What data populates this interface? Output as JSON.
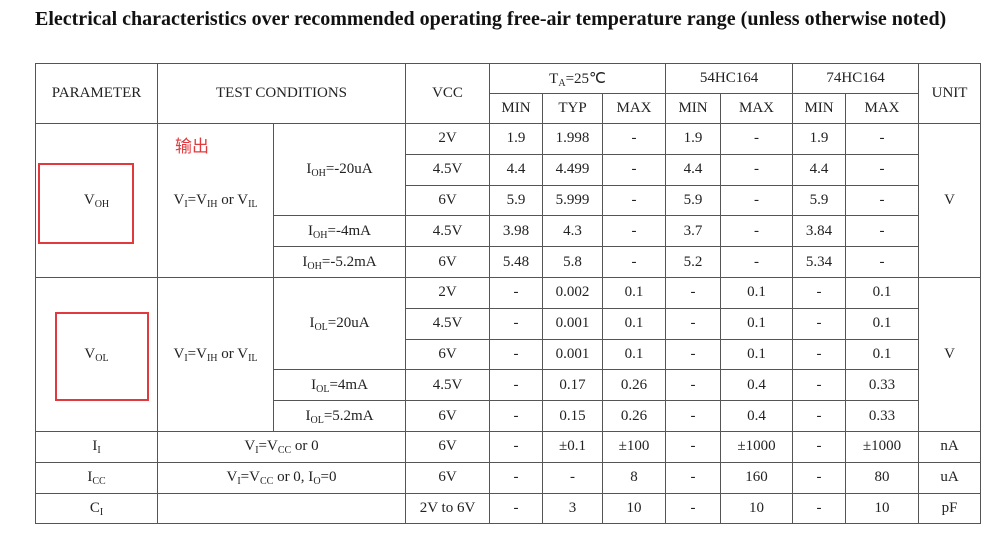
{
  "title": "Electrical characteristics over recommended operating free-air temperature range (unless otherwise noted)",
  "annotation": "输出",
  "header": {
    "parameter": "PARAMETER",
    "test_conditions": "TEST CONDITIONS",
    "vcc": "VCC",
    "ta": [
      "T",
      "A",
      "=25℃"
    ],
    "group_54": "54HC164",
    "group_74": "74HC164",
    "unit": "UNIT",
    "columns": [
      "MIN",
      "TYP",
      "MAX",
      "MIN",
      "MAX",
      "MIN",
      "MAX"
    ]
  },
  "sections": [
    {
      "parameter": [
        "V",
        "OH"
      ],
      "conditions": [
        "V",
        "I",
        "=V",
        "IH",
        " or V",
        "IL"
      ],
      "unit": "V",
      "subconditions": [
        {
          "label": [
            "I",
            "OH",
            "=-20uA"
          ],
          "rows": [
            {
              "vcc": "2V",
              "values": [
                "1.9",
                "1.998",
                "-",
                "1.9",
                "-",
                "1.9",
                "-"
              ]
            },
            {
              "vcc": "4.5V",
              "values": [
                "4.4",
                "4.499",
                "-",
                "4.4",
                "-",
                "4.4",
                "-"
              ]
            },
            {
              "vcc": "6V",
              "values": [
                "5.9",
                "5.999",
                "-",
                "5.9",
                "-",
                "5.9",
                "-"
              ]
            }
          ]
        },
        {
          "label": [
            "I",
            "OH",
            "=-4mA"
          ],
          "rows": [
            {
              "vcc": "4.5V",
              "values": [
                "3.98",
                "4.3",
                "-",
                "3.7",
                "-",
                "3.84",
                "-"
              ]
            }
          ]
        },
        {
          "label": [
            "I",
            "OH",
            "=-5.2mA"
          ],
          "rows": [
            {
              "vcc": "6V",
              "values": [
                "5.48",
                "5.8",
                "-",
                "5.2",
                "-",
                "5.34",
                "-"
              ]
            }
          ]
        }
      ]
    },
    {
      "parameter": [
        "V",
        "OL"
      ],
      "conditions": [
        "V",
        "I",
        "=V",
        "IH",
        " or V",
        "IL"
      ],
      "unit": "V",
      "subconditions": [
        {
          "label": [
            "I",
            "OL",
            "=20uA"
          ],
          "rows": [
            {
              "vcc": "2V",
              "values": [
                "-",
                "0.002",
                "0.1",
                "-",
                "0.1",
                "-",
                "0.1"
              ]
            },
            {
              "vcc": "4.5V",
              "values": [
                "-",
                "0.001",
                "0.1",
                "-",
                "0.1",
                "-",
                "0.1"
              ]
            },
            {
              "vcc": "6V",
              "values": [
                "-",
                "0.001",
                "0.1",
                "-",
                "0.1",
                "-",
                "0.1"
              ]
            }
          ]
        },
        {
          "label": [
            "I",
            "OL",
            "=4mA"
          ],
          "rows": [
            {
              "vcc": "4.5V",
              "values": [
                "-",
                "0.17",
                "0.26",
                "-",
                "0.4",
                "-",
                "0.33"
              ]
            }
          ]
        },
        {
          "label": [
            "I",
            "OL",
            "=5.2mA"
          ],
          "rows": [
            {
              "vcc": "6V",
              "values": [
                "-",
                "0.15",
                "0.26",
                "-",
                "0.4",
                "-",
                "0.33"
              ]
            }
          ]
        }
      ]
    },
    {
      "parameter": [
        "I",
        "I"
      ],
      "conditions": [
        "V",
        "I",
        "=V",
        "CC",
        " or 0"
      ],
      "unit": "nA",
      "rows": [
        {
          "vcc": "6V",
          "values": [
            "-",
            "±0.1",
            "±100",
            "-",
            "±1000",
            "-",
            "±1000"
          ]
        }
      ]
    },
    {
      "parameter": [
        "I",
        "CC"
      ],
      "conditions": [
        "V",
        "I",
        "=V",
        "CC",
        " or 0, I",
        "O",
        "=0"
      ],
      "unit": "uA",
      "rows": [
        {
          "vcc": "6V",
          "values": [
            "-",
            "-",
            "8",
            "-",
            "160",
            "-",
            "80"
          ]
        }
      ]
    },
    {
      "parameter": [
        "C",
        "I"
      ],
      "unit": "pF",
      "rows": [
        {
          "vcc": "2V to 6V",
          "values": [
            "-",
            "3",
            "10",
            "-",
            "10",
            "-",
            "10"
          ]
        }
      ]
    }
  ]
}
